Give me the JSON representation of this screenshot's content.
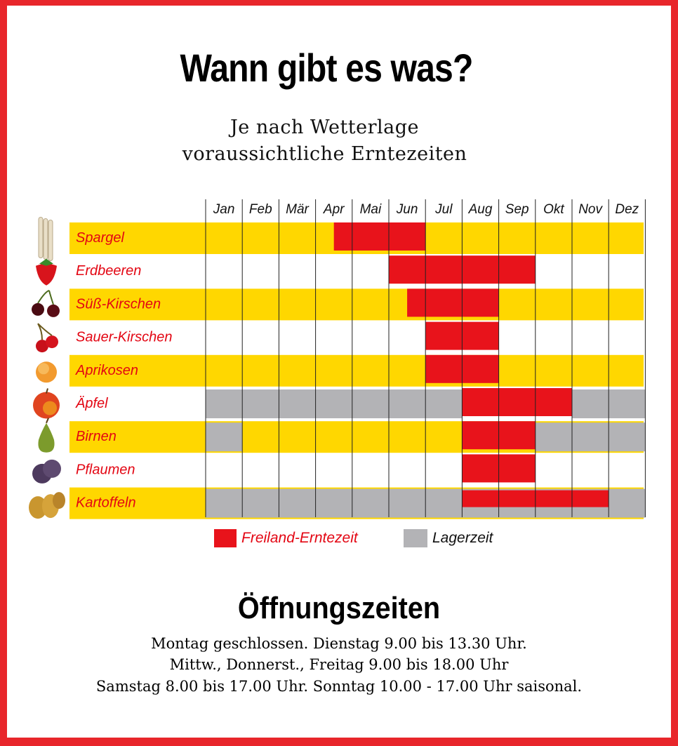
{
  "title": "Wann gibt es was?",
  "subtitle_line1": "Je nach Wetterlage",
  "subtitle_line2": "voraussichtliche Erntezeiten",
  "colors": {
    "border": "#e8262b",
    "row_band": "#ffd700",
    "harvest": "#e8131b",
    "storage": "#b3b3b6",
    "label_text": "#e30613"
  },
  "chart_data": {
    "type": "table",
    "months": [
      "Jan",
      "Feb",
      "Mär",
      "Apr",
      "Mai",
      "Jun",
      "Jul",
      "Aug",
      "Sep",
      "Okt",
      "Nov",
      "Dez"
    ],
    "rows": [
      {
        "label": "Spargel",
        "icon": "asparagus-icon",
        "band": true,
        "storage": [],
        "harvest": [
          [
            3.5,
            6.0
          ]
        ],
        "harvest_thin": false
      },
      {
        "label": "Erdbeeren",
        "icon": "strawberry-icon",
        "band": false,
        "storage": [],
        "harvest": [
          [
            5.0,
            9.0
          ]
        ],
        "harvest_thin": false
      },
      {
        "label": "Süß-Kirschen",
        "icon": "cherries-icon",
        "band": true,
        "storage": [],
        "harvest": [
          [
            5.5,
            8.0
          ]
        ],
        "harvest_thin": false
      },
      {
        "label": "Sauer-Kirschen",
        "icon": "sour-cherries-icon",
        "band": false,
        "storage": [],
        "harvest": [
          [
            6.0,
            8.0
          ]
        ],
        "harvest_thin": false
      },
      {
        "label": "Aprikosen",
        "icon": "apricot-icon",
        "band": true,
        "storage": [],
        "harvest": [
          [
            6.0,
            8.0
          ]
        ],
        "harvest_thin": false
      },
      {
        "label": "Äpfel",
        "icon": "apple-icon",
        "band": false,
        "storage": [
          [
            0,
            7.0
          ],
          [
            10.0,
            12.0
          ]
        ],
        "harvest": [
          [
            7.0,
            10.0
          ]
        ],
        "harvest_thin": false
      },
      {
        "label": "Birnen",
        "icon": "pear-icon",
        "band": true,
        "storage": [
          [
            0,
            1.0
          ],
          [
            9.0,
            12.0
          ]
        ],
        "harvest": [
          [
            7.0,
            9.0
          ]
        ],
        "harvest_thin": false
      },
      {
        "label": "Pflaumen",
        "icon": "plum-icon",
        "band": false,
        "storage": [],
        "harvest": [
          [
            7.0,
            9.0
          ]
        ],
        "harvest_thin": false
      },
      {
        "label": "Kartoffeln",
        "icon": "potatoes-icon",
        "band": true,
        "storage": [
          [
            0,
            12.0
          ]
        ],
        "harvest": [
          [
            7.0,
            11.0
          ]
        ],
        "harvest_thin": true
      }
    ],
    "legend": [
      {
        "label": "Freiland-Erntezeit",
        "color": "#e8131b"
      },
      {
        "label": "Lagerzeit",
        "color": "#b3b3b6"
      }
    ]
  },
  "opening_hours": {
    "title": "Öffnungszeiten",
    "lines": [
      "Montag geschlossen. Dienstag  9.00 bis 13.30 Uhr.",
      "Mittw., Donnerst., Freitag 9.00 bis 18.00 Uhr",
      "Samstag 8.00 bis 17.00 Uhr. Sonntag 10.00 - 17.00 Uhr saisonal."
    ]
  }
}
